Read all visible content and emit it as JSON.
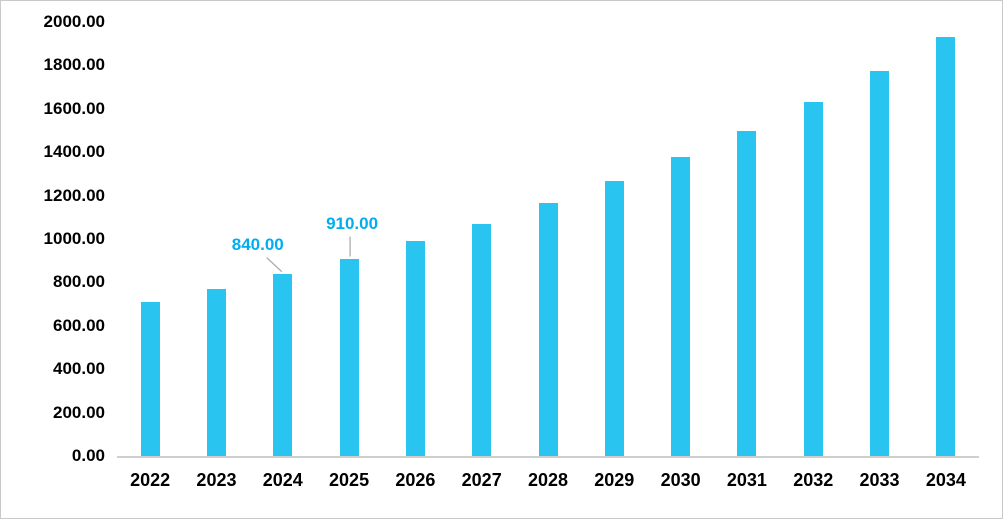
{
  "chart_data": {
    "type": "bar",
    "title": "",
    "xlabel": "",
    "ylabel": "",
    "categories": [
      "2022",
      "2023",
      "2024",
      "2025",
      "2026",
      "2027",
      "2028",
      "2029",
      "2030",
      "2031",
      "2032",
      "2033",
      "2034"
    ],
    "values": [
      710,
      771,
      840,
      910,
      989,
      1071,
      1165,
      1268,
      1380,
      1500,
      1631,
      1774,
      1929
    ],
    "ylim": [
      0,
      2000
    ],
    "ytick_step": 200,
    "ytick_labels": [
      "0.00",
      "200.00",
      "400.00",
      "600.00",
      "800.00",
      "1000.00",
      "1200.00",
      "1400.00",
      "1600.00",
      "1800.00",
      "2000.00"
    ],
    "grid": false,
    "legend": null,
    "bar_color": "#29C4F0",
    "label_color": "#00AEEF",
    "leader_line_color": "#A6A6A6",
    "axis_line_color": "#CFCFCF",
    "text_color": "#000000",
    "data_labels": [
      {
        "category": "2024",
        "text": "840.00",
        "dx": -25,
        "gap": 19,
        "line_x1": -16,
        "line_x2": -1
      },
      {
        "category": "2025",
        "text": "910.00",
        "dx": 3,
        "gap": 25,
        "line_x1": 1,
        "line_x2": 1
      }
    ]
  }
}
